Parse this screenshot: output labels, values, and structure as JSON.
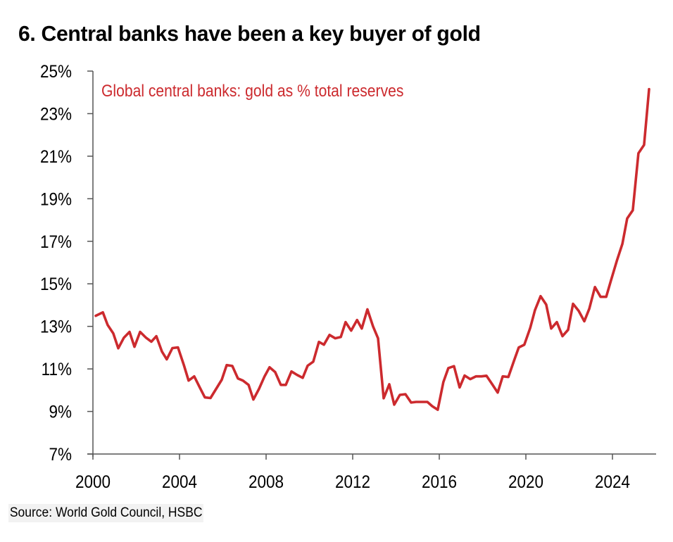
{
  "title": "6. Central banks have been a key buyer of gold",
  "source": "Source: World Gold Council, HSBC",
  "colors": {
    "series": "#cc2a2e",
    "axis": "#555555",
    "text": "#000000"
  },
  "chart_data": {
    "type": "line",
    "title": "6. Central banks have been a key buyer of gold",
    "xlabel": "",
    "ylabel": "",
    "xlim": [
      2000,
      2026
    ],
    "ylim": [
      7,
      25
    ],
    "grid": false,
    "legend_placement": "top-left",
    "x_ticks": [
      2000,
      2004,
      2008,
      2012,
      2016,
      2020,
      2024
    ],
    "x_tick_labels": [
      "2000",
      "2004",
      "2008",
      "2012",
      "2016",
      "2020",
      "2024"
    ],
    "y_ticks": [
      7,
      9,
      11,
      13,
      15,
      17,
      19,
      21,
      23,
      25
    ],
    "y_tick_labels": [
      "7%",
      "9%",
      "11%",
      "13%",
      "15%",
      "17%",
      "19%",
      "21%",
      "23%",
      "25%"
    ],
    "series": [
      {
        "name": "Global central banks: gold as % total reserves",
        "x": [
          2000.13,
          2000.46,
          2000.68,
          2000.94,
          2001.17,
          2001.43,
          2001.69,
          2001.92,
          2002.18,
          2002.44,
          2002.7,
          2002.93,
          2003.19,
          2003.41,
          2003.67,
          2003.93,
          2004.2,
          2004.42,
          2004.68,
          2004.94,
          2005.17,
          2005.43,
          2005.69,
          2005.95,
          2006.18,
          2006.44,
          2006.7,
          2006.93,
          2007.19,
          2007.41,
          2007.67,
          2007.93,
          2008.16,
          2008.42,
          2008.68,
          2008.91,
          2009.17,
          2009.43,
          2009.69,
          2009.92,
          2010.18,
          2010.44,
          2010.67,
          2010.93,
          2011.19,
          2011.45,
          2011.67,
          2011.93,
          2012.2,
          2012.42,
          2012.68,
          2012.94,
          2013.17,
          2013.43,
          2013.69,
          2013.92,
          2014.18,
          2014.44,
          2014.7,
          2014.93,
          2015.19,
          2015.45,
          2015.67,
          2015.93,
          2016.19,
          2016.42,
          2016.68,
          2016.94,
          2017.17,
          2017.43,
          2017.69,
          2017.95,
          2018.18,
          2018.44,
          2018.7,
          2018.93,
          2019.19,
          2019.45,
          2019.67,
          2019.93,
          2020.2,
          2020.42,
          2020.68,
          2020.94,
          2021.17,
          2021.43,
          2021.69,
          2021.95,
          2022.18,
          2022.44,
          2022.7,
          2022.93,
          2023.19,
          2023.45,
          2023.71,
          2023.93,
          2024.2,
          2024.46,
          2024.68,
          2024.94,
          2025.2,
          2025.46,
          2025.69
        ],
        "y": [
          13.5,
          13.66,
          13.07,
          12.67,
          11.97,
          12.47,
          12.74,
          12.04,
          12.74,
          12.48,
          12.28,
          12.54,
          11.81,
          11.45,
          11.98,
          12.01,
          11.18,
          10.45,
          10.65,
          10.12,
          9.66,
          9.63,
          10.06,
          10.49,
          11.18,
          11.14,
          10.55,
          10.45,
          10.25,
          9.56,
          10.06,
          10.65,
          11.08,
          10.85,
          10.25,
          10.25,
          10.88,
          10.72,
          10.58,
          11.15,
          11.34,
          12.27,
          12.14,
          12.6,
          12.44,
          12.5,
          13.2,
          12.8,
          13.3,
          12.9,
          13.8,
          13.0,
          12.44,
          9.62,
          10.28,
          9.32,
          9.78,
          9.81,
          9.42,
          9.45,
          9.45,
          9.45,
          9.25,
          9.08,
          10.38,
          11.04,
          11.13,
          10.13,
          10.69,
          10.52,
          10.65,
          10.65,
          10.68,
          10.29,
          9.89,
          10.65,
          10.62,
          11.38,
          12.01,
          12.14,
          12.93,
          13.76,
          14.42,
          14.02,
          12.9,
          13.2,
          12.54,
          12.84,
          14.06,
          13.73,
          13.24,
          13.83,
          14.85,
          14.39,
          14.39,
          15.15,
          16.08,
          16.88,
          18.07,
          18.46,
          21.14,
          21.53,
          24.15
        ]
      }
    ]
  }
}
